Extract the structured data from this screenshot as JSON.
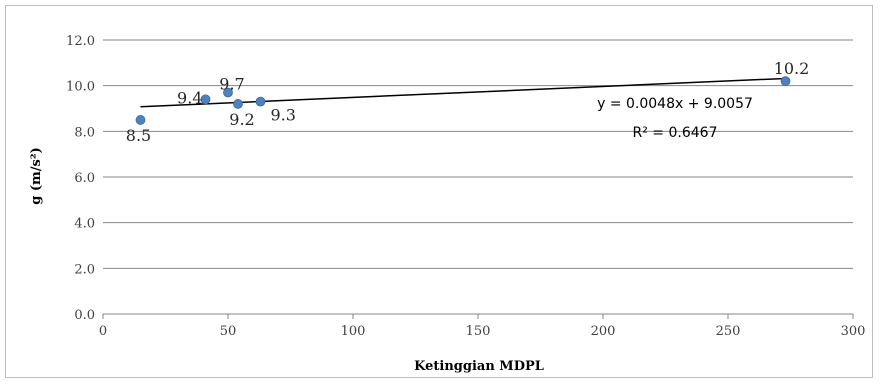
{
  "chart_data": {
    "type": "scatter",
    "xlabel": "Ketinggian MDPL",
    "ylabel": "g (m/s²)",
    "xlim": [
      0,
      300
    ],
    "ylim": [
      0,
      12
    ],
    "x_ticks": [
      "0",
      "50",
      "100",
      "150",
      "200",
      "250",
      "300"
    ],
    "y_ticks": [
      "0.0",
      "2.0",
      "4.0",
      "6.0",
      "8.0",
      "10.0",
      "12.0"
    ],
    "grid": "horizontal",
    "marker_color": "#4f81bd",
    "series": [
      {
        "points": [
          {
            "x": 15,
            "y": 8.5,
            "label": "8.5"
          },
          {
            "x": 41,
            "y": 9.4,
            "label": "9.4"
          },
          {
            "x": 50,
            "y": 9.7,
            "label": "9.7"
          },
          {
            "x": 54,
            "y": 9.2,
            "label": "9.2"
          },
          {
            "x": 63,
            "y": 9.3,
            "label": "9.3"
          },
          {
            "x": 273,
            "y": 10.2,
            "label": "10.2"
          }
        ]
      }
    ],
    "trendline": {
      "type": "linear",
      "slope": 0.0048,
      "intercept": 9.0057,
      "x_range": [
        15,
        273
      ],
      "equation": "y = 0.0048x + 9.0057",
      "r_squared": "R² = 0.6467"
    }
  }
}
